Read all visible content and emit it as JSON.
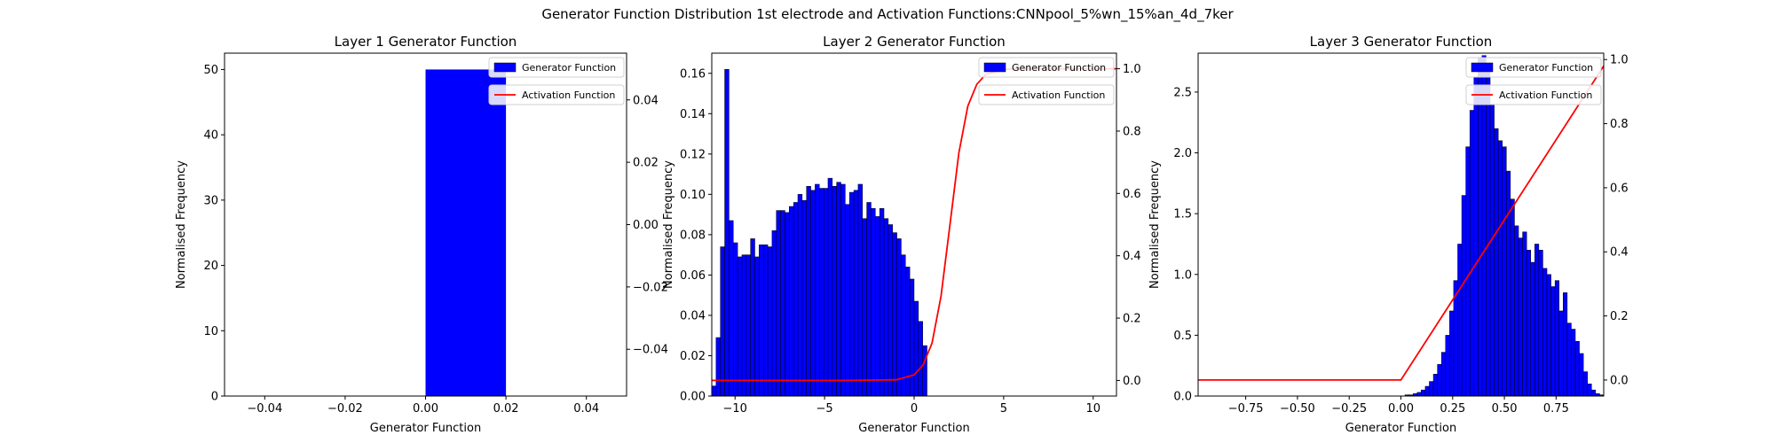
{
  "figure": {
    "suptitle": "Generator Function Distribution 1st electrode and Activation Functions:CNNpool_5%wn_15%an_4d_7ker"
  },
  "chart_data": [
    {
      "type": "bar",
      "title": "Layer 1 Generator Function",
      "xlabel": "Generator Function",
      "ylabel": "Normalised Frequency",
      "xlim": [
        -0.05,
        0.05
      ],
      "ylim": [
        0,
        52.5
      ],
      "xticks": [
        -0.04,
        -0.02,
        0.0,
        0.02,
        0.04
      ],
      "xtick_labels": [
        "−0.04",
        "−0.02",
        "0.00",
        "0.02",
        "0.04"
      ],
      "yticks": [
        0,
        10,
        20,
        30,
        40,
        50
      ],
      "ytick_labels": [
        "0",
        "10",
        "20",
        "30",
        "40",
        "50"
      ],
      "y2lim": [
        -0.055,
        0.055
      ],
      "y2ticks": [
        -0.04,
        -0.02,
        0.0,
        0.02,
        0.04
      ],
      "y2tick_labels": [
        "−0.04",
        "−0.02",
        "0.00",
        "0.02",
        "0.04"
      ],
      "legend": {
        "position": "top-right",
        "entries": [
          "Generator Function",
          "Activation Function"
        ]
      },
      "histogram": {
        "name": "Generator Function",
        "color": "#0000ff",
        "edges": [
          0.0,
          0.02
        ],
        "values": [
          50.0
        ]
      },
      "activation": {
        "name": "Activation Function",
        "color": "#ff0000",
        "x": [],
        "y": []
      }
    },
    {
      "type": "bar",
      "title": "Layer 2 Generator Function",
      "xlabel": "Generator Function",
      "ylabel": "Normalised Frequency",
      "xlim": [
        -11.3,
        11.3
      ],
      "ylim": [
        0,
        0.17
      ],
      "xticks": [
        -10,
        -5,
        0,
        5,
        10
      ],
      "xtick_labels": [
        "−10",
        "−5",
        "0",
        "5",
        "10"
      ],
      "yticks": [
        0.0,
        0.02,
        0.04,
        0.06,
        0.08,
        0.1,
        0.12,
        0.14,
        0.16
      ],
      "ytick_labels": [
        "0.00",
        "0.02",
        "0.04",
        "0.06",
        "0.08",
        "0.10",
        "0.12",
        "0.14",
        "0.16"
      ],
      "y2lim": [
        -0.05,
        1.05
      ],
      "y2ticks": [
        0.0,
        0.2,
        0.4,
        0.6,
        0.8,
        1.0
      ],
      "y2tick_labels": [
        "0.0",
        "0.2",
        "0.4",
        "0.6",
        "0.8",
        "1.0"
      ],
      "legend": {
        "position": "top-right",
        "entries": [
          "Generator Function",
          "Activation Function"
        ]
      },
      "histogram": {
        "name": "Generator Function",
        "color": "#0000ff",
        "edges": [
          -11.3,
          0.72
        ],
        "values": [
          0.005,
          0.029,
          0.074,
          0.162,
          0.087,
          0.076,
          0.069,
          0.07,
          0.07,
          0.078,
          0.069,
          0.075,
          0.075,
          0.074,
          0.082,
          0.092,
          0.092,
          0.091,
          0.094,
          0.096,
          0.1,
          0.097,
          0.104,
          0.102,
          0.105,
          0.103,
          0.103,
          0.108,
          0.104,
          0.106,
          0.105,
          0.095,
          0.101,
          0.102,
          0.105,
          0.088,
          0.096,
          0.093,
          0.089,
          0.093,
          0.088,
          0.085,
          0.081,
          0.078,
          0.07,
          0.064,
          0.058,
          0.047,
          0.037,
          0.025
        ]
      },
      "activation": {
        "name": "Activation Function",
        "color": "#ff0000",
        "x": [
          -11.3,
          -4,
          -1,
          0,
          0.5,
          1,
          1.5,
          2,
          2.5,
          3,
          3.5,
          4,
          5,
          6,
          8,
          11.3
        ],
        "y": [
          0.0,
          0.0,
          0.002,
          0.018,
          0.05,
          0.12,
          0.27,
          0.5,
          0.73,
          0.88,
          0.95,
          0.982,
          0.998,
          1.0,
          1.0,
          1.0
        ]
      }
    },
    {
      "type": "bar",
      "title": "Layer 3 Generator Function",
      "xlabel": "Generator Function",
      "ylabel": "Normalised Frequency",
      "xlim": [
        -0.98,
        0.98
      ],
      "ylim": [
        0,
        2.82
      ],
      "xticks": [
        -0.75,
        -0.5,
        -0.25,
        0.0,
        0.25,
        0.5,
        0.75
      ],
      "xtick_labels": [
        "−0.75",
        "−0.50",
        "−0.25",
        "0.00",
        "0.25",
        "0.50",
        "0.75"
      ],
      "yticks": [
        0.0,
        0.5,
        1.0,
        1.5,
        2.0,
        2.5
      ],
      "ytick_labels": [
        "0.0",
        "0.5",
        "1.0",
        "1.5",
        "2.0",
        "2.5"
      ],
      "y2lim": [
        -0.05,
        1.02
      ],
      "y2ticks": [
        0.0,
        0.2,
        0.4,
        0.6,
        0.8,
        1.0
      ],
      "y2tick_labels": [
        "0.0",
        "0.2",
        "0.4",
        "0.6",
        "0.8",
        "1.0"
      ],
      "legend": {
        "position": "top-right",
        "entries": [
          "Generator Function",
          "Activation Function"
        ]
      },
      "histogram": {
        "name": "Generator Function",
        "color": "#0000ff",
        "edges": [
          0.0,
          0.98
        ],
        "values": [
          0.0,
          0.01,
          0.01,
          0.02,
          0.03,
          0.05,
          0.08,
          0.12,
          0.18,
          0.26,
          0.36,
          0.5,
          0.7,
          0.95,
          1.25,
          1.65,
          2.05,
          2.35,
          2.62,
          2.78,
          2.8,
          2.7,
          2.4,
          2.2,
          2.1,
          2.05,
          1.85,
          1.62,
          1.4,
          1.3,
          1.35,
          1.2,
          1.1,
          1.25,
          1.2,
          1.05,
          1.0,
          0.9,
          0.95,
          0.7,
          0.85,
          0.6,
          0.55,
          0.45,
          0.35,
          0.2,
          0.1,
          0.05,
          0.02,
          0.01
        ]
      },
      "activation": {
        "name": "Activation Function",
        "color": "#ff0000",
        "x": [
          -0.98,
          0.0,
          0.98
        ],
        "y": [
          0.0,
          0.0,
          0.98
        ]
      }
    }
  ]
}
